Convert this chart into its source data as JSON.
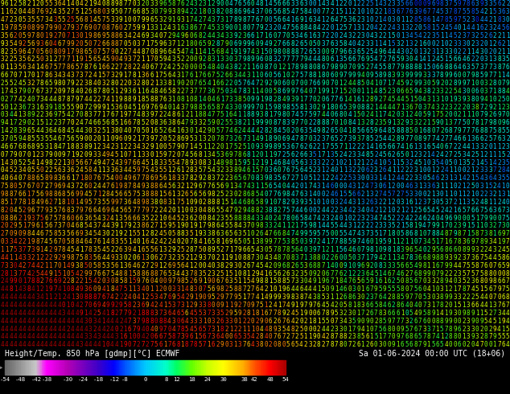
{
  "title_left": "Height/Temp. 850 hPa [gdmp][°C] ECMWF",
  "title_right": "Sa 01-06-2024 00:00 UTC (18+06)",
  "bg_color": "#000000",
  "font_size": 5.5,
  "grid_rows": 44,
  "grid_cols": 116,
  "color_stops": [
    [
      -54,
      "#646464"
    ],
    [
      -48,
      "#969696"
    ],
    [
      -42,
      "#c8c8c8"
    ],
    [
      -38,
      "#ff00ff"
    ],
    [
      -30,
      "#b400b4"
    ],
    [
      -24,
      "#7800be"
    ],
    [
      -18,
      "#3c00c8"
    ],
    [
      -12,
      "#0000ff"
    ],
    [
      -8,
      "#0050ff"
    ],
    [
      0,
      "#00c8ff"
    ],
    [
      8,
      "#00ffc8"
    ],
    [
      12,
      "#00ff64"
    ],
    [
      18,
      "#64ff00"
    ],
    [
      24,
      "#c8ff00"
    ],
    [
      30,
      "#ffff00"
    ],
    [
      38,
      "#ffaa00"
    ],
    [
      42,
      "#ff5500"
    ],
    [
      48,
      "#ff0000"
    ],
    [
      54,
      "#aa0000"
    ]
  ],
  "colorbar_labels": [
    "-54",
    "-48",
    "-42",
    "-38",
    "-30",
    "-24",
    "-18",
    "-12",
    "-8",
    "0",
    "8",
    "12",
    "18",
    "24",
    "30",
    "38",
    "42",
    "48",
    "54"
  ],
  "colorbar_label_vals": [
    -54,
    -48,
    -42,
    -38,
    -30,
    -24,
    -18,
    -12,
    -8,
    0,
    8,
    12,
    18,
    24,
    30,
    38,
    42,
    48,
    54
  ]
}
